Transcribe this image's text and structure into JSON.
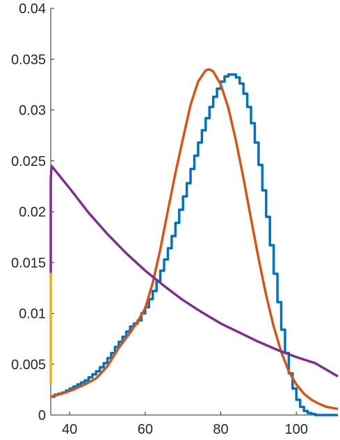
{
  "chart_data": {
    "type": "line",
    "title": "",
    "xlabel": "",
    "ylabel": "",
    "xlim": [
      35,
      111
    ],
    "ylim": [
      0,
      0.04
    ],
    "grid": false,
    "legend": "none",
    "x_ticks": [
      40,
      60,
      80,
      100
    ],
    "x_tick_labels": [
      "40",
      "60",
      "80",
      "100"
    ],
    "y_ticks": [
      0,
      0.005,
      0.01,
      0.015,
      0.02,
      0.025,
      0.03,
      0.035,
      0.04
    ],
    "y_tick_labels": [
      "0",
      "0.005",
      "0.01",
      "0.015",
      "0.02",
      "0.025",
      "0.03",
      "0.035",
      "0.04"
    ],
    "series": [
      {
        "kind": "stairs",
        "color": "#0072BD",
        "bin_width": 1,
        "x_start": 35,
        "values": [
          0.0018,
          0.002,
          0.0021,
          0.0022,
          0.0024,
          0.0026,
          0.0028,
          0.003,
          0.0032,
          0.0034,
          0.0037,
          0.004,
          0.0043,
          0.0047,
          0.0051,
          0.0056,
          0.0061,
          0.0067,
          0.0072,
          0.0077,
          0.0082,
          0.0087,
          0.009,
          0.0093,
          0.01,
          0.0106,
          0.0114,
          0.0122,
          0.0132,
          0.0142,
          0.0153,
          0.0164,
          0.0176,
          0.0189,
          0.0202,
          0.0215,
          0.0228,
          0.0242,
          0.0255,
          0.0268,
          0.028,
          0.0292,
          0.0303,
          0.0313,
          0.0321,
          0.0328,
          0.0333,
          0.0335,
          0.0335,
          0.0332,
          0.0326,
          0.0316,
          0.0303,
          0.0287,
          0.0268,
          0.0246,
          0.0221,
          0.0195,
          0.0167,
          0.0139,
          0.0111,
          0.0084,
          0.0061,
          0.0041,
          0.0026,
          0.0015,
          0.0008,
          0.0004,
          0.0002,
          0.0001,
          0.0,
          0.0,
          0.0,
          0.0,
          0.0,
          0.0
        ]
      },
      {
        "kind": "line",
        "color": "#D95319",
        "x": [
          35,
          38,
          41,
          44,
          47,
          50,
          53,
          56,
          58,
          60,
          62,
          64,
          66,
          68,
          70,
          72,
          74,
          76,
          77,
          78,
          80,
          82,
          84,
          86,
          88,
          90,
          92,
          94,
          96,
          98,
          100,
          102,
          104,
          106,
          108,
          111
        ],
        "y": [
          0.0018,
          0.0021,
          0.0025,
          0.003,
          0.0036,
          0.0048,
          0.0066,
          0.0081,
          0.0092,
          0.0105,
          0.013,
          0.0163,
          0.0201,
          0.0238,
          0.0272,
          0.0305,
          0.0328,
          0.0339,
          0.034,
          0.0338,
          0.0325,
          0.0302,
          0.027,
          0.0233,
          0.0193,
          0.0154,
          0.0118,
          0.0087,
          0.0062,
          0.0043,
          0.003,
          0.0021,
          0.0015,
          0.0011,
          0.0008,
          0.0006
        ]
      },
      {
        "kind": "line",
        "color": "#7E2F8E",
        "x": [
          35,
          35,
          35.2,
          40,
          45,
          50,
          55,
          60,
          65,
          70,
          75,
          80,
          85,
          90,
          95,
          100,
          105,
          111
        ],
        "y": [
          0.0135,
          0.0232,
          0.0245,
          0.0223,
          0.0199,
          0.0178,
          0.0159,
          0.0142,
          0.0127,
          0.0113,
          0.0101,
          0.009,
          0.0081,
          0.0072,
          0.0064,
          0.0057,
          0.0051,
          0.0038
        ]
      },
      {
        "kind": "line",
        "color": "#EDB120",
        "x": [
          35,
          35
        ],
        "y": [
          0.003,
          0.014
        ]
      }
    ]
  }
}
